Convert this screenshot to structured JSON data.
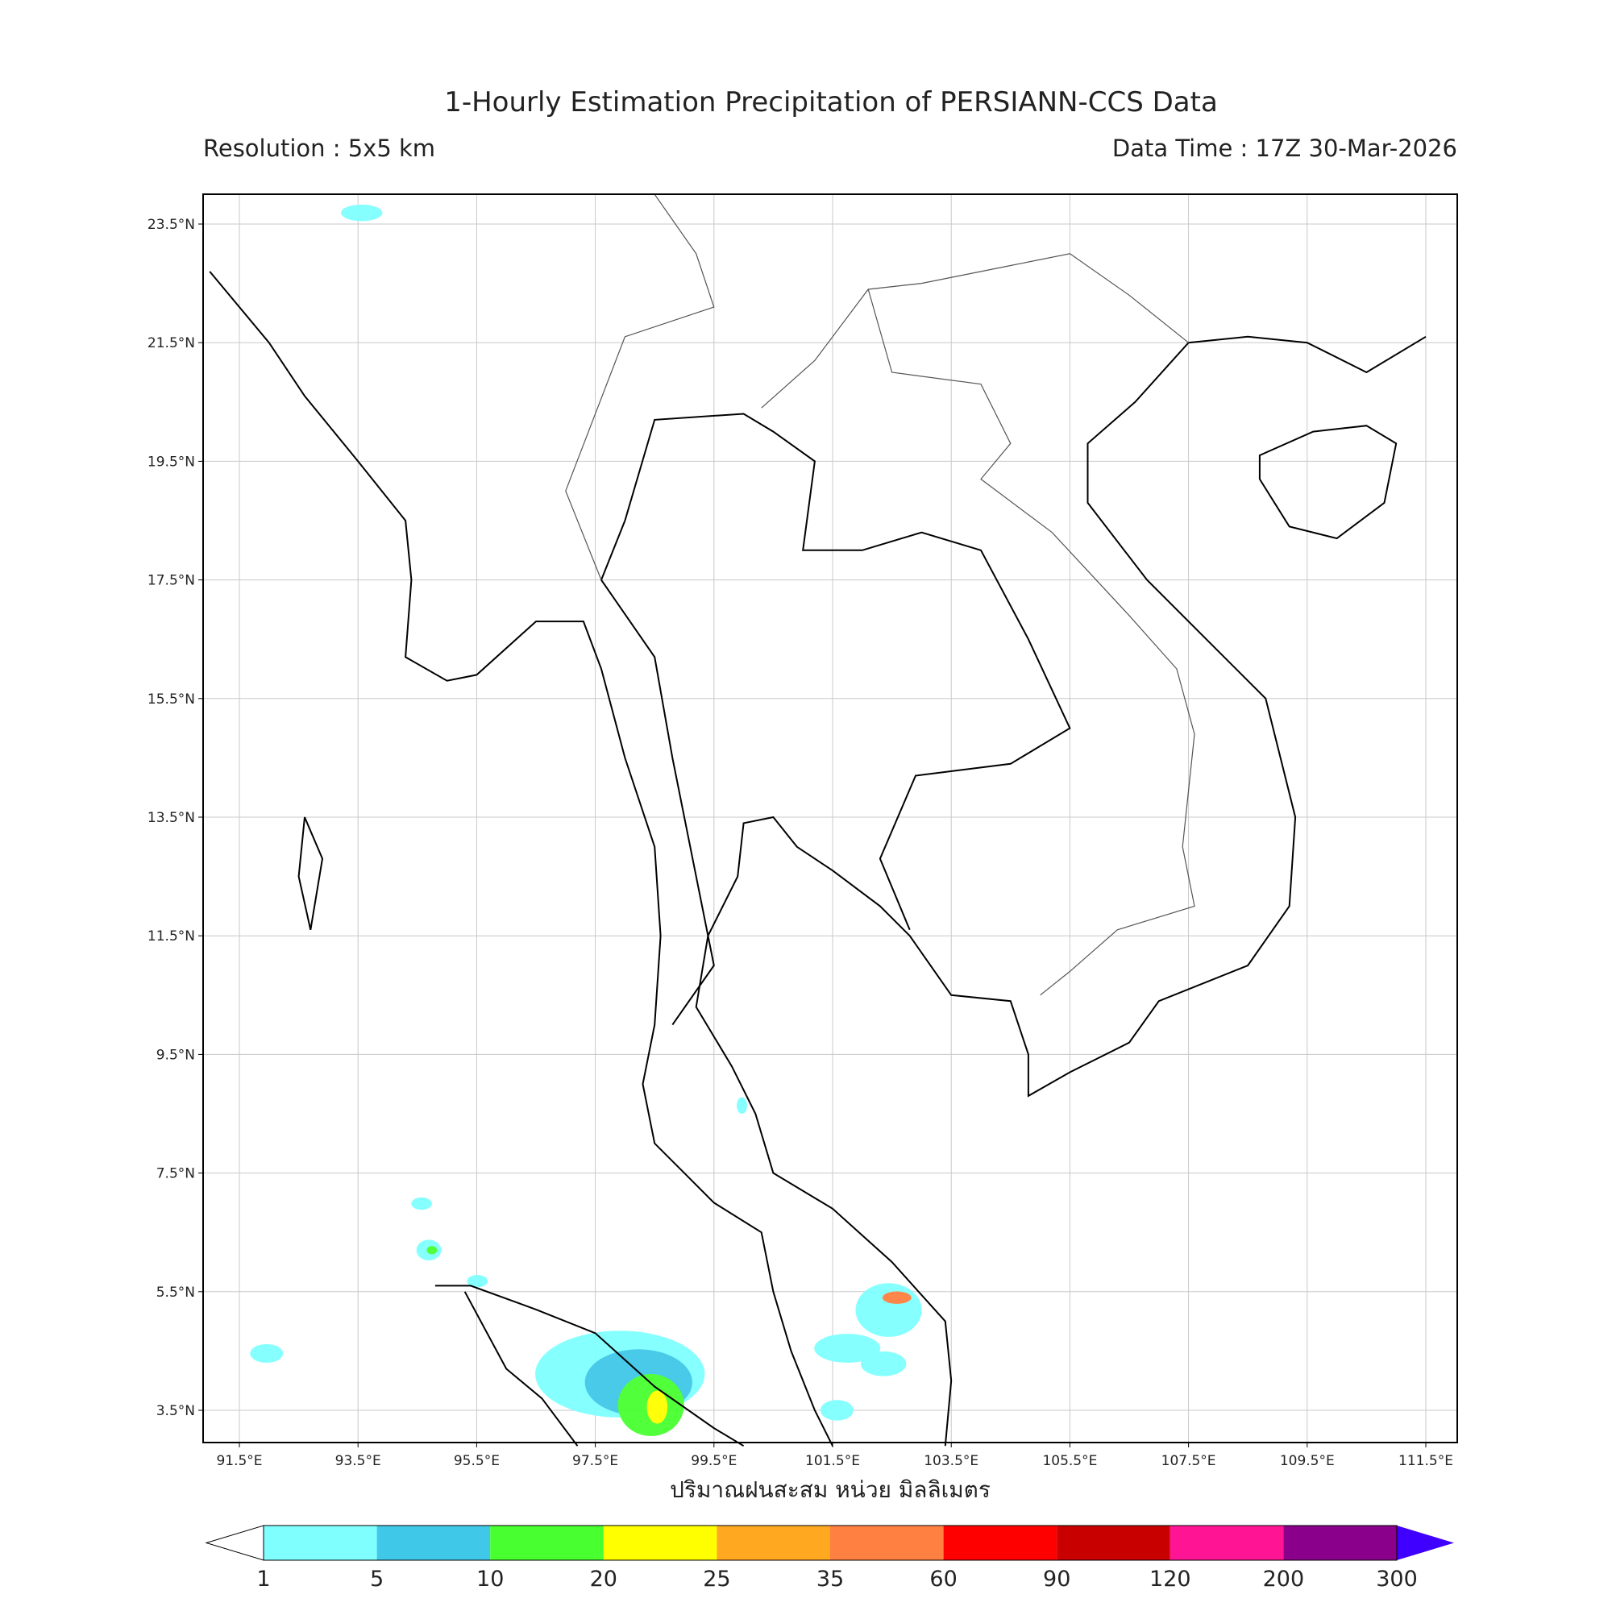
{
  "header": {
    "title": "1-Hourly Estimation Precipitation of PERSIANN-CCS Data",
    "resolution": "Resolution : 5x5 km",
    "data_time": "Data Time : 17Z 30-Mar-2026"
  },
  "map": {
    "lon_ticks": [
      "91.5°E",
      "93.5°E",
      "95.5°E",
      "97.5°E",
      "99.5°E",
      "101.5°E",
      "103.5°E",
      "105.5°E",
      "107.5°E",
      "109.5°E",
      "111.5°E"
    ],
    "lat_ticks": [
      "23.5°N",
      "21.5°N",
      "19.5°N",
      "17.5°N",
      "15.5°N",
      "13.5°N",
      "11.5°N",
      "9.5°N",
      "7.5°N",
      "5.5°N",
      "3.5°N"
    ],
    "x_label": "ปริมาณฝนสะสม หน่วย มิลลิเมตร"
  },
  "colorbar": {
    "levels": [
      1,
      5,
      10,
      20,
      25,
      35,
      60,
      90,
      120,
      200,
      300
    ],
    "colors": [
      "#80ffff",
      "#40c8e8",
      "#48ff30",
      "#ffff00",
      "#ffa820",
      "#ff8040",
      "#ff0000",
      "#c80000",
      "#ff1493",
      "#8b008b"
    ],
    "under_color": "#ffffff",
    "over_color": "#4000ff"
  }
}
